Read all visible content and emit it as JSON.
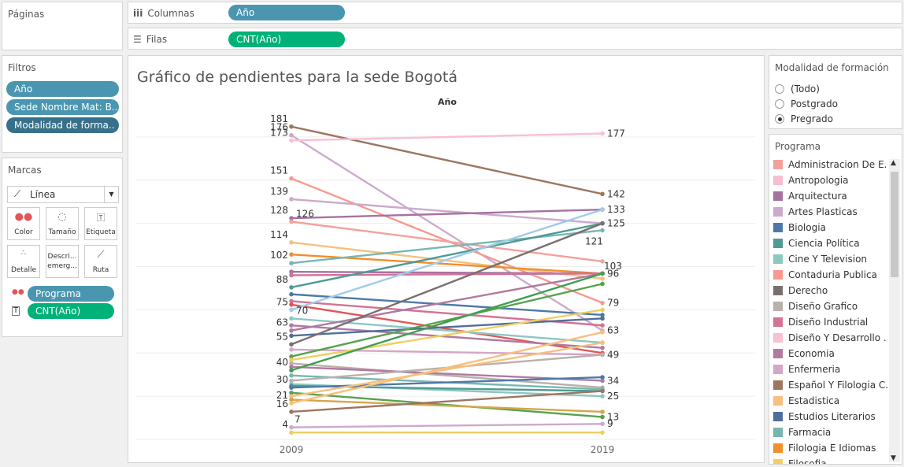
{
  "pages": {
    "title": "Páginas"
  },
  "shelves": {
    "columns": {
      "label": "Columnas",
      "pill": "Año"
    },
    "rows": {
      "label": "Filas",
      "pill": "CNT(Año)"
    }
  },
  "filters": {
    "title": "Filtros",
    "items": [
      "Año",
      "Sede Nombre Mat: B..",
      "Modalidad de forma.."
    ]
  },
  "marks": {
    "title": "Marcas",
    "type": "Línea",
    "buttons": [
      "Color",
      "Tamaño",
      "Etiqueta",
      "Detalle",
      "Descri... emerg...",
      "Ruta"
    ],
    "fields": [
      "Programa",
      "CNT(Año)"
    ]
  },
  "modalidad": {
    "title": "Modalidad de formación",
    "options": [
      "(Todo)",
      "Postgrado",
      "Pregrado"
    ],
    "selected": "Pregrado"
  },
  "programa": {
    "title": "Programa",
    "items": [
      {
        "name": "Administracion De E..",
        "color": "#f4a09c"
      },
      {
        "name": "Antropologia",
        "color": "#f7bdd0"
      },
      {
        "name": "Arquitectura",
        "color": "#a672a0"
      },
      {
        "name": "Artes Plasticas",
        "color": "#ccaacc"
      },
      {
        "name": "Biologia",
        "color": "#4e79a7"
      },
      {
        "name": "Ciencia Política",
        "color": "#4f9a94"
      },
      {
        "name": "Cine Y Television",
        "color": "#8cc7c0"
      },
      {
        "name": "Contaduria Publica",
        "color": "#f8998f"
      },
      {
        "name": "Derecho",
        "color": "#79706e"
      },
      {
        "name": "Diseño Grafico",
        "color": "#bab0ac"
      },
      {
        "name": "Diseño Industrial",
        "color": "#d37295"
      },
      {
        "name": "Diseño Y Desarrollo ..",
        "color": "#fabfd2"
      },
      {
        "name": "Economia",
        "color": "#b07aa1"
      },
      {
        "name": "Enfermeria",
        "color": "#d4a6c8"
      },
      {
        "name": "Español Y Filologia C..",
        "color": "#9d7660"
      },
      {
        "name": "Estadistica",
        "color": "#f7c07e"
      },
      {
        "name": "Estudios Literarios",
        "color": "#4f6f9a"
      },
      {
        "name": "Farmacia",
        "color": "#76b7b2"
      },
      {
        "name": "Filologia E Idiomas",
        "color": "#f28e2b"
      },
      {
        "name": "Filosofia",
        "color": "#f1ce63"
      }
    ]
  },
  "chart_data": {
    "type": "line",
    "title": "Gráfico de pendientes para la sede Bogotá",
    "xlabel": "Año",
    "categories": [
      "2009",
      "2019"
    ],
    "ylim": [
      0,
      190
    ],
    "grid": true,
    "left_labels": [
      181,
      176,
      173,
      151,
      139,
      128,
      126,
      114,
      102,
      88,
      75,
      70,
      63,
      55,
      40,
      30,
      21,
      16,
      7,
      4
    ],
    "right_labels": [
      177,
      142,
      133,
      125,
      121,
      103,
      96,
      79,
      63,
      49,
      34,
      25,
      13,
      9
    ],
    "series": [
      {
        "values": [
          181,
          142
        ],
        "color": "#9d7660"
      },
      {
        "values": [
          176,
          63
        ],
        "color": "#ccaacc"
      },
      {
        "values": [
          173,
          177
        ],
        "color": "#fabfd2"
      },
      {
        "values": [
          151,
          79
        ],
        "color": "#f8998f"
      },
      {
        "values": [
          139,
          125
        ],
        "color": "#ccaacc"
      },
      {
        "values": [
          128,
          133
        ],
        "color": "#a672a0"
      },
      {
        "values": [
          126,
          103
        ],
        "color": "#f4a09c"
      },
      {
        "values": [
          114,
          93
        ],
        "color": "#f7c07e"
      },
      {
        "values": [
          107,
          96
        ],
        "color": "#f28e2b"
      },
      {
        "values": [
          102,
          121
        ],
        "color": "#76b7b2"
      },
      {
        "values": [
          97,
          96
        ],
        "color": "#a672a0"
      },
      {
        "values": [
          95,
          96
        ],
        "color": "#d37295"
      },
      {
        "values": [
          88,
          125
        ],
        "color": "#4f9a94"
      },
      {
        "values": [
          84,
          72
        ],
        "color": "#4e79a7"
      },
      {
        "values": [
          80,
          66
        ],
        "color": "#d37295"
      },
      {
        "values": [
          78,
          50
        ],
        "color": "#e15759"
      },
      {
        "values": [
          75,
          133
        ],
        "color": "#a0cbe8"
      },
      {
        "values": [
          70,
          56
        ],
        "color": "#8cc7c0"
      },
      {
        "values": [
          66,
          53
        ],
        "color": "#b07aa1"
      },
      {
        "values": [
          63,
          96
        ],
        "color": "#b07aa1"
      },
      {
        "values": [
          60,
          70
        ],
        "color": "#4f6f9a"
      },
      {
        "values": [
          55,
          125
        ],
        "color": "#79706e"
      },
      {
        "values": [
          52,
          49
        ],
        "color": "#d4a6c8"
      },
      {
        "values": [
          48,
          90
        ],
        "color": "#59a14f"
      },
      {
        "values": [
          46,
          75
        ],
        "color": "#f1ce63"
      },
      {
        "values": [
          44,
          30
        ],
        "color": "#bab0ac"
      },
      {
        "values": [
          42,
          34
        ],
        "color": "#b07aa1"
      },
      {
        "values": [
          40,
          96
        ],
        "color": "#3f9f4f"
      },
      {
        "values": [
          37,
          29
        ],
        "color": "#76b7b2"
      },
      {
        "values": [
          34,
          49
        ],
        "color": "#bab0ac"
      },
      {
        "values": [
          32,
          25
        ],
        "color": "#8cc7c0"
      },
      {
        "values": [
          31,
          28
        ],
        "color": "#4f9a94"
      },
      {
        "values": [
          30,
          36
        ],
        "color": "#4e79a7"
      },
      {
        "values": [
          27,
          13
        ],
        "color": "#59a14f"
      },
      {
        "values": [
          25,
          56
        ],
        "color": "#f7c07e"
      },
      {
        "values": [
          23,
          16
        ],
        "color": "#d4a64a"
      },
      {
        "values": [
          21,
          62
        ],
        "color": "#f7c07e"
      },
      {
        "values": [
          16,
          28
        ],
        "color": "#9d7660"
      },
      {
        "values": [
          7,
          9
        ],
        "color": "#ccaacc"
      },
      {
        "values": [
          4,
          4
        ],
        "color": "#f1ce63"
      }
    ]
  }
}
